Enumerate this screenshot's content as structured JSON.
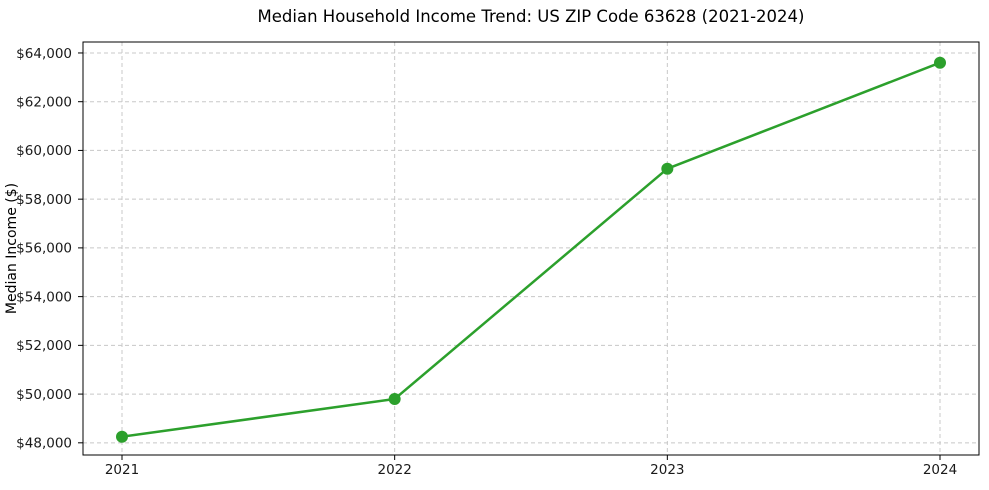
{
  "chart_data": {
    "type": "line",
    "title": "Median Household Income Trend: US ZIP Code 63628 (2021-2024)",
    "xlabel": "",
    "ylabel": "Median Income ($)",
    "categories": [
      "2021",
      "2022",
      "2023",
      "2024"
    ],
    "series": [
      {
        "name": "Median Household Income",
        "values": [
          48250,
          49800,
          59250,
          63600
        ],
        "color": "#2ca02c",
        "marker": "circle",
        "marker_size": 6,
        "line_width": 2.5
      }
    ],
    "ylim": [
      47500,
      64450
    ],
    "yticks": [
      48000,
      50000,
      52000,
      54000,
      56000,
      58000,
      60000,
      62000,
      64000
    ],
    "ytick_prefix": "$",
    "grid": true,
    "grid_style": "dashed",
    "grid_color": "#c8c8c8",
    "axis_color": "#000000",
    "text_color": "#1a1a1a",
    "legend_position": "none"
  }
}
